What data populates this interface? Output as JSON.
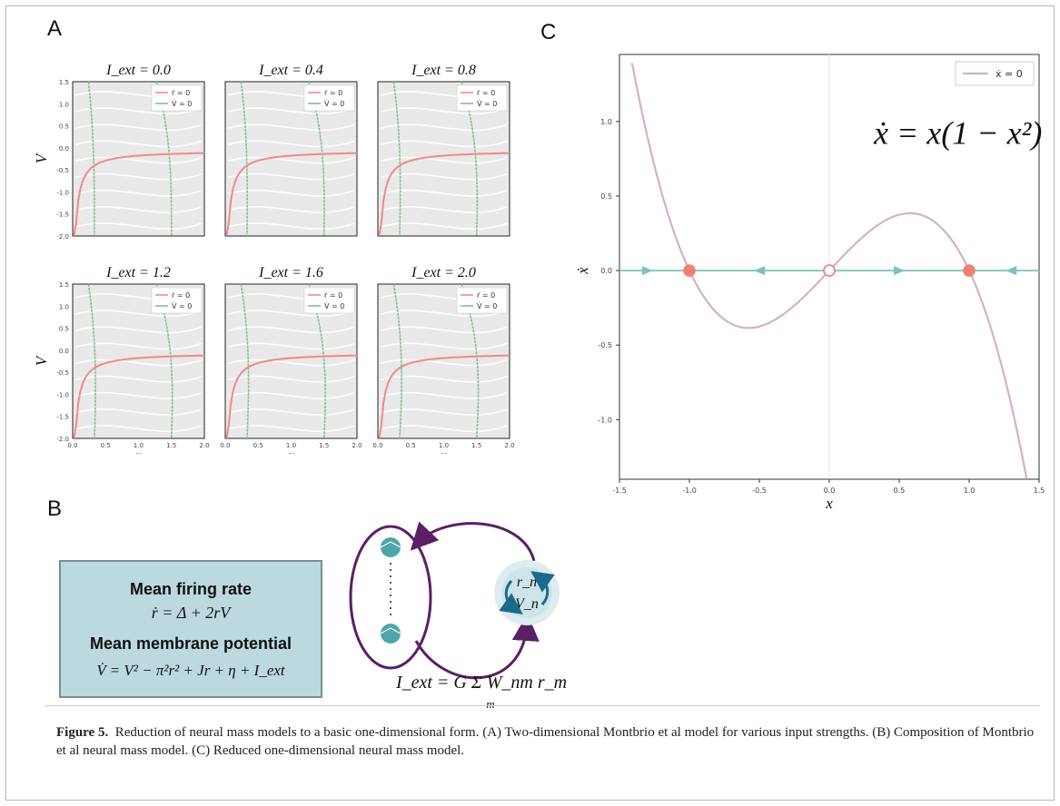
{
  "panel_labels": {
    "a": "A",
    "b": "B",
    "c": "C"
  },
  "panel_a": {
    "titles": [
      "I_ext = 0.0",
      "I_ext = 0.4",
      "I_ext = 0.8",
      "I_ext = 1.2",
      "I_ext = 1.6",
      "I_ext = 2.0"
    ],
    "ylabel": "V",
    "xlabel": "r",
    "yticks": [
      "1.5",
      "1.0",
      "0.5",
      "0.0",
      "-0.5",
      "-1.0",
      "-1.5",
      "-2.0"
    ],
    "xticks": [
      "0.0",
      "0.5",
      "1.0",
      "1.5",
      "2.0"
    ],
    "legend": [
      "ṙ = 0",
      "V̇ = 0"
    ]
  },
  "panel_b": {
    "heading_rate": "Mean firing rate",
    "eq_rate": "ṙ = Δ + 2rV",
    "heading_potential": "Mean membrane potential",
    "eq_potential": "V̇ = V² − π²r² + Jr + η + I_ext",
    "node_top": "r_n",
    "node_bottom": "V_n",
    "coupling": "I_ext = G Σ W_nm r_m",
    "coupling_sub": "m"
  },
  "chart_data": [
    {
      "panel": "A",
      "type": "line",
      "subplots": [
        {
          "I_ext": 0.0
        },
        {
          "I_ext": 0.4
        },
        {
          "I_ext": 0.8
        },
        {
          "I_ext": 1.2
        },
        {
          "I_ext": 1.6
        },
        {
          "I_ext": 2.0
        }
      ],
      "xlabel": "r",
      "ylabel": "V",
      "xlim": [
        0,
        2
      ],
      "ylim": [
        -2,
        1.5
      ],
      "series": [
        {
          "name": "ṙ=0",
          "color": "#ef8a8a"
        },
        {
          "name": "V̇=0",
          "color": "#7fc28a"
        }
      ]
    },
    {
      "panel": "C",
      "type": "line",
      "equation": "ẋ = x(1 − x²)",
      "xlabel": "x",
      "ylabel": "ẋ",
      "xlim": [
        -1.5,
        1.5
      ],
      "ylim": [
        -1.4,
        1.45
      ],
      "xticks": [
        -1.5,
        -1.0,
        -0.5,
        0.0,
        0.5,
        1.0,
        1.5
      ],
      "yticks": [
        1.0,
        0.5,
        0.0,
        -0.5,
        -1.0
      ],
      "legend": "ẋ = 0",
      "legend_position": "top-right",
      "curve_color": "#d4b1c8",
      "axis_line_color": "#7fbfbf",
      "fixed_points": [
        {
          "x": -1.0,
          "stable": true,
          "color": "#f08070"
        },
        {
          "x": 0.0,
          "stable": false,
          "color": "#f08070"
        },
        {
          "x": 1.0,
          "stable": true,
          "color": "#f08070"
        }
      ],
      "flow_arrows": [
        {
          "x": -1.3,
          "direction": "right"
        },
        {
          "x": -0.5,
          "direction": "left"
        },
        {
          "x": 0.5,
          "direction": "right"
        },
        {
          "x": 1.3,
          "direction": "left"
        }
      ]
    }
  ],
  "caption": {
    "label": "Figure 5.",
    "text": "Reduction of neural mass models to a basic one-dimensional form. (A) Two-dimensional Montbrio et al model for various input strengths. (B) Composition of Montbrio et al neural mass model. (C) Reduced one-dimensional neural mass model."
  }
}
